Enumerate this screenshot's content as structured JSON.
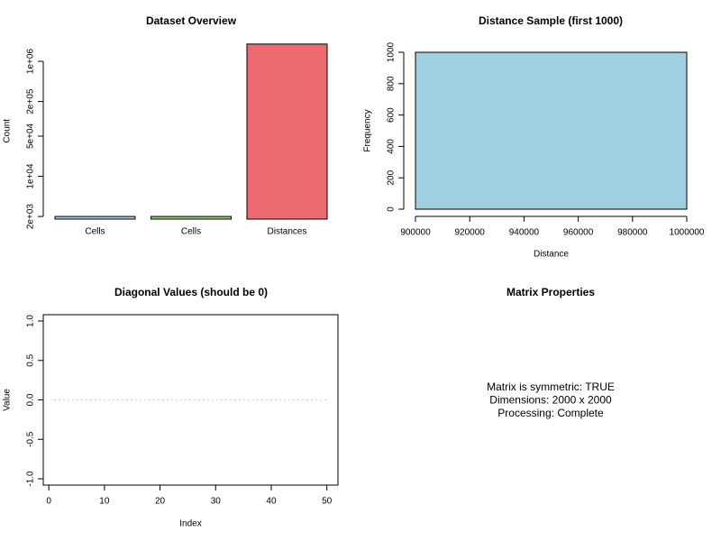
{
  "chart_data": [
    {
      "type": "bar",
      "title": "Dataset Overview",
      "ylabel": "Count",
      "categories": [
        "Cells",
        "Cells",
        "Distances"
      ],
      "values": [
        2000,
        2000,
        2000000
      ],
      "colors": [
        "#a6cde3",
        "#8fd17f",
        "#ec6a70"
      ],
      "log_y": true,
      "ylim": [
        1800,
        2100000
      ],
      "yticks": [
        {
          "value": 2000,
          "label": "2e+03"
        },
        {
          "value": 10000,
          "label": "1e+04"
        },
        {
          "value": 50000,
          "label": "5e+04"
        },
        {
          "value": 200000,
          "label": "2e+05"
        },
        {
          "value": 1000000,
          "label": "1e+06"
        }
      ]
    },
    {
      "type": "histogram",
      "title": "Distance Sample (first 1000)",
      "xlabel": "Distance",
      "ylabel": "Frequency",
      "bins": [
        900000,
        1000000
      ],
      "counts": [
        1000
      ],
      "color": "#a0cfdf",
      "xlim": [
        900000,
        1000000
      ],
      "xticks": [
        900000,
        920000,
        940000,
        960000,
        980000,
        1000000
      ],
      "ylim": [
        0,
        1000
      ],
      "yticks": [
        0,
        200,
        400,
        600,
        800,
        1000
      ]
    },
    {
      "type": "line",
      "title": "Diagonal Values (should be 0)",
      "xlabel": "Index",
      "ylabel": "Value",
      "color": "#ff6b6b",
      "box": true,
      "x": [
        1,
        2,
        3,
        4,
        5,
        6,
        7,
        8,
        9,
        10,
        11,
        12,
        13,
        14,
        15,
        16,
        17,
        18,
        19,
        20,
        21,
        22,
        23,
        24,
        25,
        26,
        27,
        28,
        29,
        30,
        31,
        32,
        33,
        34,
        35,
        36,
        37,
        38,
        39,
        40,
        41,
        42,
        43,
        44,
        45,
        46,
        47,
        48,
        49,
        50
      ],
      "values": [
        0,
        0,
        0,
        0,
        0,
        0,
        0,
        0,
        0,
        0,
        0,
        0,
        0,
        0,
        0,
        0,
        0,
        0,
        0,
        0,
        0,
        0,
        0,
        0,
        0,
        0,
        0,
        0,
        0,
        0,
        0,
        0,
        0,
        0,
        0,
        0,
        0,
        0,
        0,
        0,
        0,
        0,
        0,
        0,
        0,
        0,
        0,
        0,
        0,
        0
      ],
      "xlim": [
        -1,
        52
      ],
      "xticks": [
        0,
        10,
        20,
        30,
        40,
        50
      ],
      "ylim": [
        -1.08,
        1.08
      ],
      "yticks": [
        {
          "value": -1,
          "label": "-1.0"
        },
        {
          "value": -0.5,
          "label": "-0.5"
        },
        {
          "value": 0,
          "label": "0.0"
        },
        {
          "value": 0.5,
          "label": "0.5"
        },
        {
          "value": 1,
          "label": "1.0"
        }
      ]
    },
    {
      "type": "text",
      "title": "Matrix Properties",
      "color": "#000080",
      "lines": [
        "Matrix is symmetric: TRUE",
        "Dimensions: 2000 x 2000",
        "Processing: Complete"
      ]
    }
  ]
}
